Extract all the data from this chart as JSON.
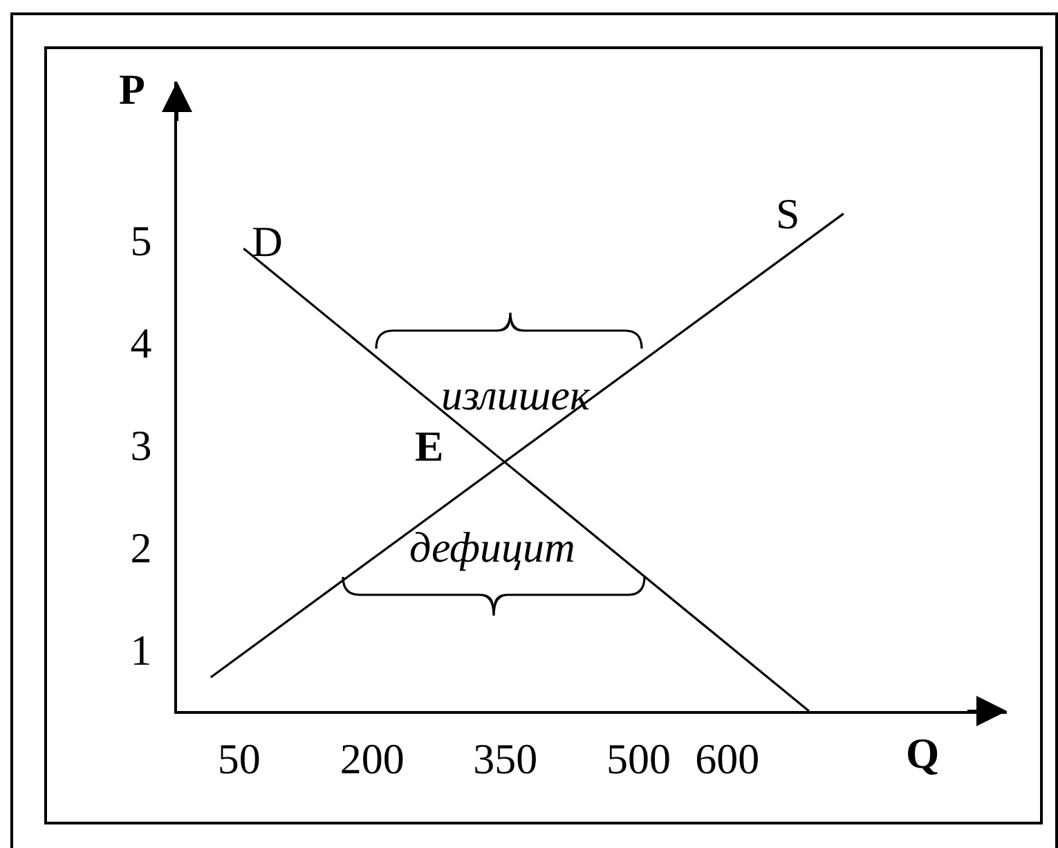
{
  "chart_data": {
    "type": "line",
    "xlabel": "Q",
    "ylabel": "P",
    "xlim": [
      -20,
      915
    ],
    "ylim": [
      0.4,
      6.55
    ],
    "xticks": [
      50,
      200,
      350,
      500,
      600
    ],
    "yticks": [
      1,
      2,
      3,
      4,
      5
    ],
    "line_style": "solid",
    "series": [
      {
        "name": "D",
        "color": "#000000",
        "x": [
          55,
          692
        ],
        "values": [
          4.92,
          0.4
        ]
      },
      {
        "name": "S",
        "color": "#000000",
        "x": [
          18,
          731
        ],
        "values": [
          0.73,
          5.26
        ]
      }
    ],
    "annotations": [
      {
        "text": "E",
        "x": 350,
        "y": 2.84
      },
      "излишек",
      "дефицит"
    ]
  }
}
